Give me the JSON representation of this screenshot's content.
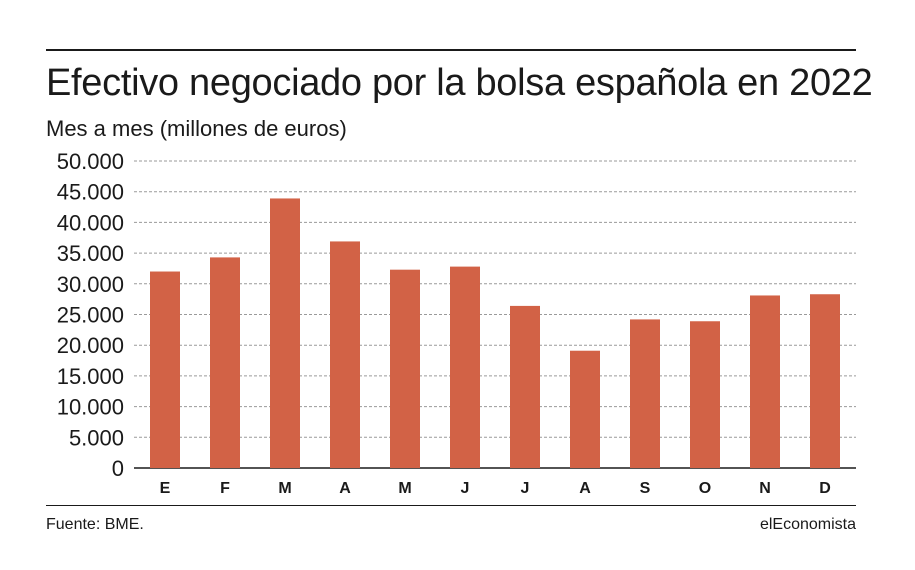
{
  "header": {
    "title": "Efectivo negociado por la bolsa española en 2022",
    "subtitle": "Mes a mes (millones de euros)"
  },
  "footer": {
    "source": "Fuente: BME.",
    "brand": "elEconomista"
  },
  "colors": {
    "bar": "#d26246",
    "grid": "#9a9a9a",
    "text": "#1a1a1a"
  },
  "chart_data": {
    "type": "bar",
    "title": "Efectivo negociado por la bolsa española en 2022",
    "subtitle": "Mes a mes (millones de euros)",
    "categories": [
      "E",
      "F",
      "M",
      "A",
      "M",
      "J",
      "J",
      "A",
      "S",
      "O",
      "N",
      "D"
    ],
    "values": [
      32000,
      34300,
      43900,
      36900,
      32300,
      32800,
      26400,
      19100,
      24200,
      23900,
      28100,
      28300
    ],
    "ylim": [
      0,
      50000
    ],
    "yticks": [
      0,
      5000,
      10000,
      15000,
      20000,
      25000,
      30000,
      35000,
      40000,
      45000,
      50000
    ],
    "ytick_labels": [
      "0",
      "5.000",
      "10.000",
      "15.000",
      "20.000",
      "25.000",
      "30.000",
      "35.000",
      "40.000",
      "45.000",
      "50.000"
    ],
    "grid": true,
    "legend": "none"
  }
}
